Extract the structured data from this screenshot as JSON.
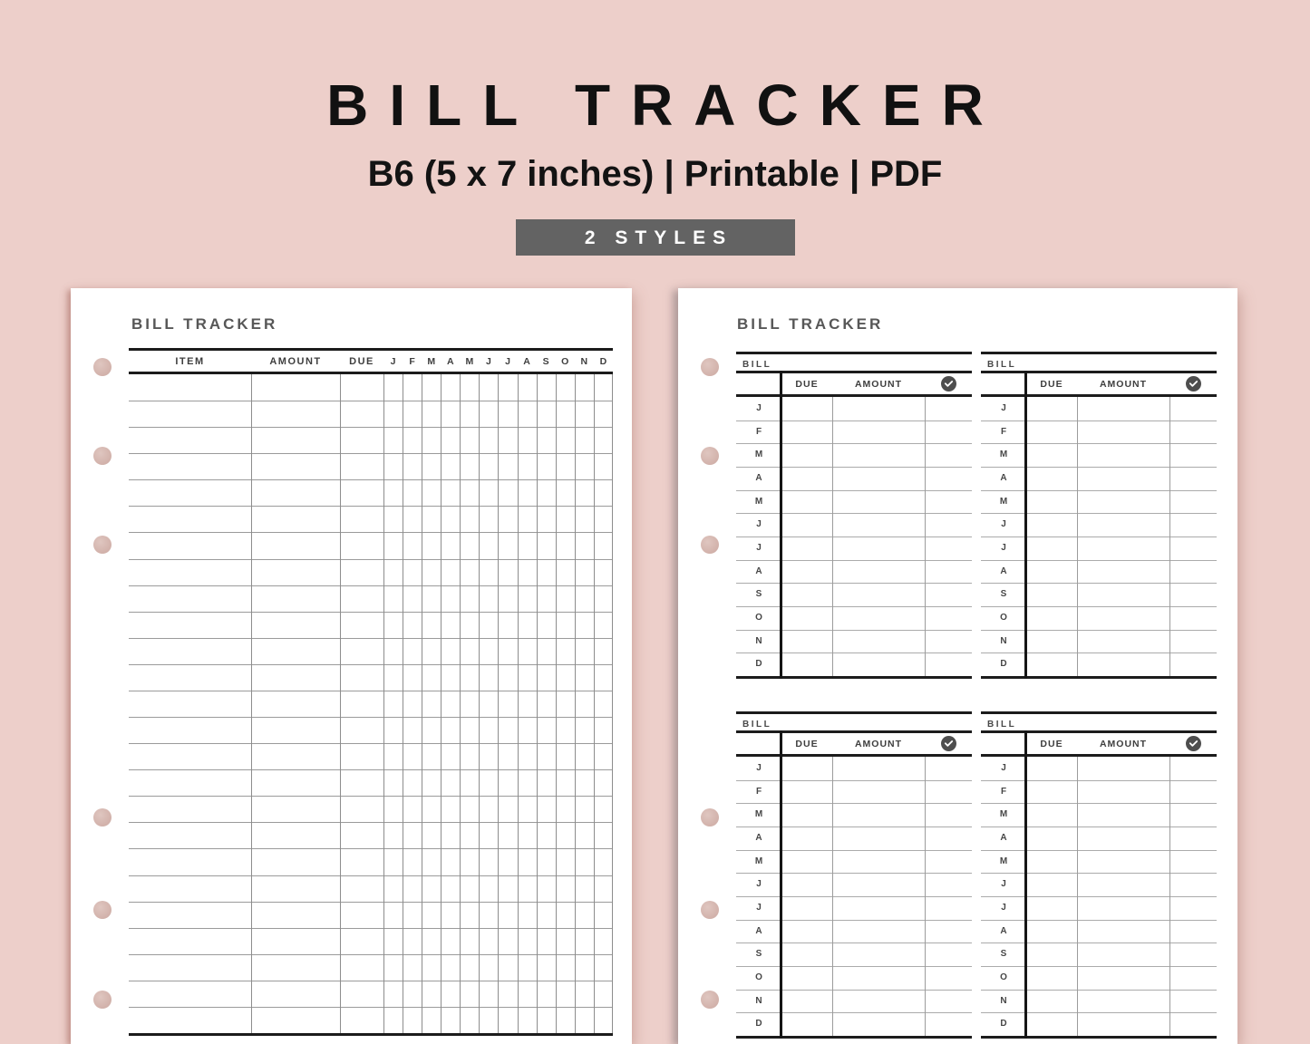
{
  "header": {
    "title": "BILL TRACKER",
    "subtitle": "B6 (5 x 7 inches) | Printable | PDF",
    "badge": "2 STYLES"
  },
  "months": [
    "J",
    "F",
    "M",
    "A",
    "M",
    "J",
    "J",
    "A",
    "S",
    "O",
    "N",
    "D"
  ],
  "left_page": {
    "heading": "BILL TRACKER",
    "columns": {
      "item": "ITEM",
      "amount": "AMOUNT",
      "due": "DUE"
    },
    "row_count": 25
  },
  "right_page": {
    "heading": "BILL TRACKER",
    "quadrant_count": 4,
    "section_label": "BILL",
    "columns": {
      "due": "DUE",
      "amount": "AMOUNT"
    },
    "check_icon": "check-circle-icon"
  },
  "colors": {
    "background": "#edcfca",
    "page": "#ffffff",
    "badge": "#636363",
    "thick_line": "#1c1c1c",
    "thin_line": "#9b9b9b",
    "heading_text": "#575757",
    "title_text": "#111111",
    "check_circle": "#4e4e4e",
    "punch_hole": "#d3b3ac"
  }
}
